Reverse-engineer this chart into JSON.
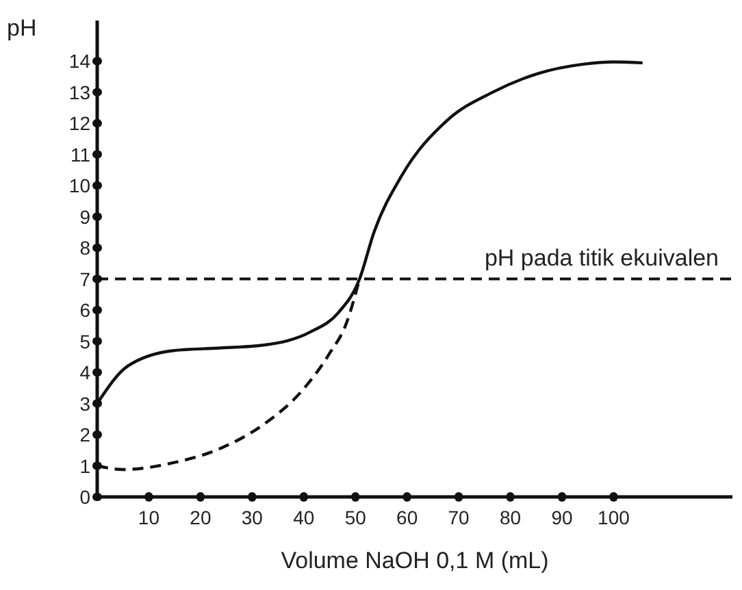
{
  "chart_data": {
    "type": "line",
    "xlabel": "Volume NaOH 0,1 M (mL)",
    "ylabel": "pH",
    "xlim": [
      0,
      123
    ],
    "ylim": [
      0,
      15.3
    ],
    "xticks": [
      10,
      20,
      30,
      40,
      50,
      60,
      70,
      80,
      90,
      100
    ],
    "yticks": [
      0,
      1,
      2,
      3,
      4,
      5,
      6,
      7,
      8,
      9,
      10,
      11,
      12,
      13,
      14
    ],
    "grid": false,
    "marker": "none",
    "series": [
      {
        "color": "#111111",
        "line_style": "solid",
        "x": [
          0,
          5.9,
          14.8,
          23.6,
          32.4,
          41.3,
          46.6,
          50.8,
          53.6,
          58.9,
          67.8,
          76.6,
          85.4,
          94.3,
          100,
          105.6
        ],
        "values": [
          3.0,
          4.2,
          4.7,
          4.78,
          4.88,
          5.3,
          5.9,
          7.0,
          8.5,
          10.3,
          12.1,
          13.0,
          13.6,
          13.9,
          13.97,
          13.94
        ]
      },
      {
        "color": "#111111",
        "line_style": "dashed",
        "x": [
          0,
          5,
          14.8,
          23.6,
          32.4,
          39.5,
          44.8,
          48.3,
          50.8
        ],
        "values": [
          1.0,
          0.88,
          1.1,
          1.54,
          2.35,
          3.38,
          4.56,
          5.6,
          7.0
        ]
      }
    ],
    "ref_lines": [
      {
        "axis": "y",
        "value": 7,
        "label": "pH pada titik ekuivalen",
        "color": "#111111",
        "line_style": "dashed"
      }
    ]
  }
}
